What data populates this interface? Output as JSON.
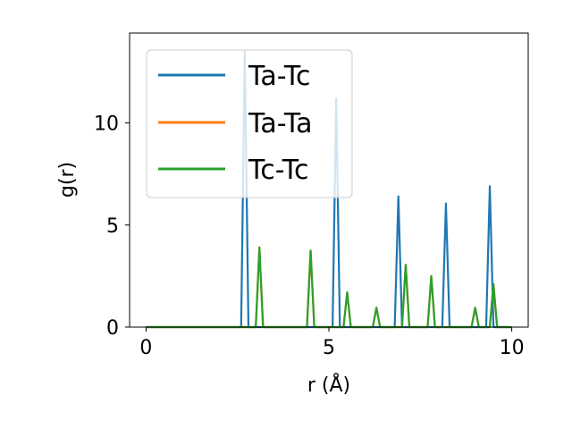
{
  "chart_data": {
    "type": "line",
    "title": "",
    "xlabel": "r (Å)",
    "ylabel": "g(r)",
    "xlim": [
      -0.45,
      10.45
    ],
    "ylim": [
      0,
      14.4
    ],
    "x_ticks": [
      0,
      5,
      10
    ],
    "y_ticks": [
      0,
      5,
      10
    ],
    "grid": false,
    "legend_position": "upper-left",
    "x": [
      0.0,
      0.1,
      0.2,
      0.3,
      0.4,
      0.5,
      0.6,
      0.7,
      0.8,
      0.9,
      1.0,
      1.1,
      1.2,
      1.3,
      1.4,
      1.5,
      1.6,
      1.7,
      1.8,
      1.9,
      2.0,
      2.1,
      2.2,
      2.3,
      2.4,
      2.5,
      2.6,
      2.7,
      2.8,
      2.9,
      3.0,
      3.1,
      3.2,
      3.3,
      3.4,
      3.5,
      3.6,
      3.7,
      3.8,
      3.9,
      4.0,
      4.1,
      4.2,
      4.3,
      4.4,
      4.5,
      4.6,
      4.7,
      4.8,
      4.9,
      5.0,
      5.1,
      5.2,
      5.3,
      5.4,
      5.5,
      5.6,
      5.7,
      5.8,
      5.9,
      6.0,
      6.1,
      6.2,
      6.3,
      6.4,
      6.5,
      6.6,
      6.7,
      6.8,
      6.9,
      7.0,
      7.1,
      7.2,
      7.3,
      7.4,
      7.5,
      7.6,
      7.7,
      7.8,
      7.9,
      8.0,
      8.1,
      8.2,
      8.3,
      8.4,
      8.5,
      8.6,
      8.7,
      8.8,
      8.9,
      9.0,
      9.1,
      9.2,
      9.3,
      9.4,
      9.5,
      9.6,
      9.7,
      9.8,
      9.9,
      10.0
    ],
    "series": [
      {
        "name": "Ta-Tc",
        "color": "#1f77b4",
        "values": [
          0,
          0,
          0,
          0,
          0,
          0,
          0,
          0,
          0,
          0,
          0,
          0,
          0,
          0,
          0,
          0,
          0,
          0,
          0,
          0,
          0,
          0,
          0,
          0,
          0,
          0,
          0,
          13.5,
          0,
          0,
          0,
          0,
          0,
          0,
          0,
          0,
          0,
          0,
          0,
          0,
          0,
          0,
          0,
          0,
          0,
          0,
          0,
          0,
          0,
          0,
          0,
          0,
          11.2,
          0,
          0,
          0,
          0,
          0,
          0,
          0,
          0,
          0,
          0,
          0,
          0,
          0,
          0,
          0,
          0,
          6.4,
          0,
          0,
          0,
          0,
          0,
          0,
          0,
          0,
          0,
          0,
          0,
          0,
          6.05,
          0,
          0,
          0,
          0,
          0,
          0,
          0,
          0,
          0,
          0,
          0,
          6.9,
          0,
          0,
          0,
          0,
          0,
          0
        ]
      },
      {
        "name": "Ta-Ta",
        "color": "#ff7f0e",
        "values": [
          0,
          0,
          0,
          0,
          0,
          0,
          0,
          0,
          0,
          0,
          0,
          0,
          0,
          0,
          0,
          0,
          0,
          0,
          0,
          0,
          0,
          0,
          0,
          0,
          0,
          0,
          0,
          0,
          0,
          0,
          0,
          3.9,
          0,
          0,
          0,
          0,
          0,
          0,
          0,
          0,
          0,
          0,
          0,
          0,
          0,
          3.75,
          0,
          0,
          0,
          0,
          0,
          0,
          0,
          0,
          0,
          1.7,
          0,
          0,
          0,
          0,
          0,
          0,
          0,
          0.95,
          0,
          0,
          0,
          0,
          0,
          0,
          0,
          3.05,
          0,
          0,
          0,
          0,
          0,
          0,
          2.5,
          0,
          0,
          0,
          0,
          0,
          0,
          0,
          0,
          0,
          0,
          0,
          0.95,
          0,
          0,
          0,
          0,
          2.1,
          0,
          0,
          0,
          0,
          0
        ]
      },
      {
        "name": "Tc-Tc",
        "color": "#2ca02c",
        "values": [
          0,
          0,
          0,
          0,
          0,
          0,
          0,
          0,
          0,
          0,
          0,
          0,
          0,
          0,
          0,
          0,
          0,
          0,
          0,
          0,
          0,
          0,
          0,
          0,
          0,
          0,
          0,
          0,
          0,
          0,
          0,
          3.9,
          0,
          0,
          0,
          0,
          0,
          0,
          0,
          0,
          0,
          0,
          0,
          0,
          0,
          3.75,
          0,
          0,
          0,
          0,
          0,
          0,
          0,
          0,
          0,
          1.7,
          0,
          0,
          0,
          0,
          0,
          0,
          0,
          0.95,
          0,
          0,
          0,
          0,
          0,
          0,
          0,
          3.05,
          0,
          0,
          0,
          0,
          0,
          0,
          2.5,
          0,
          0,
          0,
          0,
          0,
          0,
          0,
          0,
          0,
          0,
          0,
          0.95,
          0,
          0,
          0,
          0,
          2.1,
          0,
          0,
          0,
          0,
          0
        ]
      }
    ]
  }
}
